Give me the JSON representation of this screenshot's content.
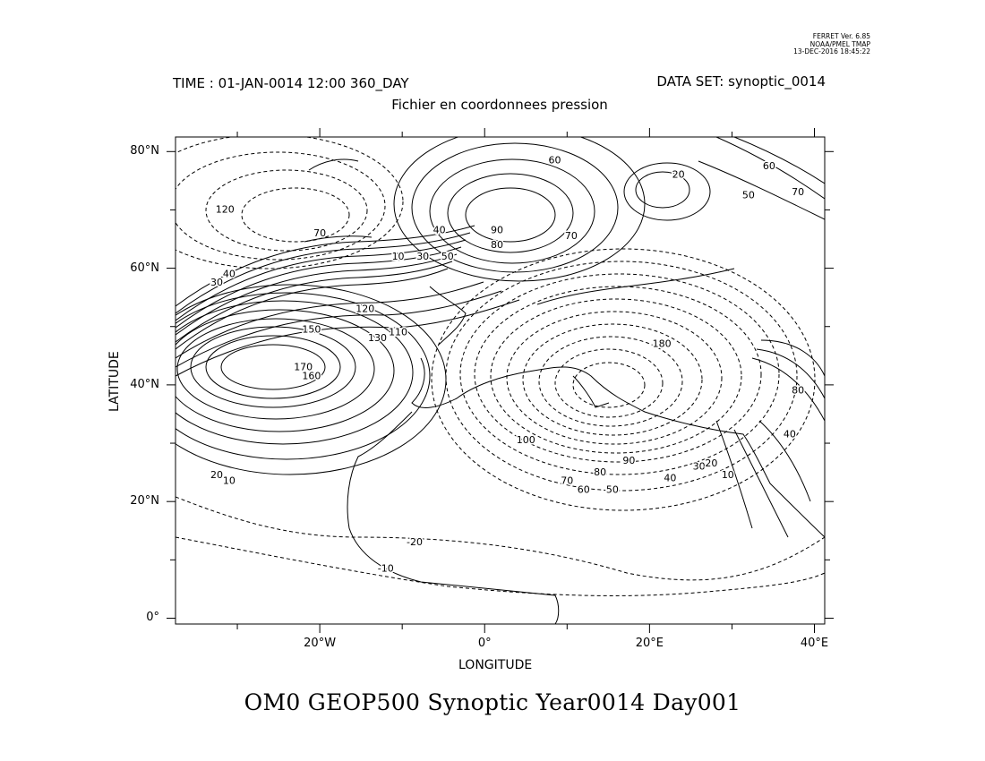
{
  "header": {
    "ferret_line1": "FERRET Ver. 6.85",
    "ferret_line2": "NOAA/PMEL TMAP",
    "ferret_line3": "13-DEC-2016 18:45:22",
    "time_label": "TIME : 01-JAN-0014 12:00 360_DAY",
    "dataset_label": "DATA SET: synoptic_0014",
    "subtitle": "Fichier en coordonnees pression"
  },
  "plot": {
    "xlabel": "LONGITUDE",
    "ylabel": "LATITUDE",
    "xlim": [
      -37.5,
      41.25
    ],
    "ylim": [
      -1,
      82.5
    ],
    "xticks": [
      {
        "value": -20,
        "label": "20°W"
      },
      {
        "value": 0,
        "label": "0°"
      },
      {
        "value": 20,
        "label": "20°E"
      },
      {
        "value": 40,
        "label": "40°E"
      }
    ],
    "yticks": [
      {
        "value": 0,
        "label": "0°"
      },
      {
        "value": 20,
        "label": "20°N"
      },
      {
        "value": 40,
        "label": "40°N"
      },
      {
        "value": 60,
        "label": "60°N"
      },
      {
        "value": 80,
        "label": "80°N"
      }
    ],
    "contour_labels": [
      {
        "text": "120",
        "lon": -31.5,
        "lat": 69.5
      },
      {
        "text": "70",
        "lon": -20,
        "lat": 65.5
      },
      {
        "text": "40",
        "lon": -31,
        "lat": 58.5
      },
      {
        "text": "30",
        "lon": -32.5,
        "lat": 57
      },
      {
        "text": "10",
        "lon": -10.5,
        "lat": 61.5
      },
      {
        "text": "30",
        "lon": -7.5,
        "lat": 61.5
      },
      {
        "text": "40",
        "lon": -5.5,
        "lat": 66
      },
      {
        "text": "50",
        "lon": -4.5,
        "lat": 61.5
      },
      {
        "text": "60",
        "lon": 8.5,
        "lat": 78
      },
      {
        "text": "90",
        "lon": 1.5,
        "lat": 66
      },
      {
        "text": "80",
        "lon": 1.5,
        "lat": 63.5
      },
      {
        "text": "70",
        "lon": 10.5,
        "lat": 65
      },
      {
        "text": "20",
        "lon": 23.5,
        "lat": 75.5
      },
      {
        "text": "50",
        "lon": 32,
        "lat": 72
      },
      {
        "text": "60",
        "lon": 34.5,
        "lat": 77
      },
      {
        "text": "70",
        "lon": 38,
        "lat": 72.5
      },
      {
        "text": "120",
        "lon": -14.5,
        "lat": 52.5
      },
      {
        "text": "150",
        "lon": -21,
        "lat": 49
      },
      {
        "text": "130",
        "lon": -13,
        "lat": 47.5
      },
      {
        "text": "110",
        "lon": -10.5,
        "lat": 48.5
      },
      {
        "text": "170",
        "lon": -22,
        "lat": 42.5
      },
      {
        "text": "160",
        "lon": -21,
        "lat": 41
      },
      {
        "text": "180",
        "lon": 21.5,
        "lat": 46.5
      },
      {
        "text": "100",
        "lon": 5,
        "lat": 30
      },
      {
        "text": "90",
        "lon": 17.5,
        "lat": 26.5
      },
      {
        "text": "80",
        "lon": 14,
        "lat": 24.5
      },
      {
        "text": "70",
        "lon": 10,
        "lat": 23
      },
      {
        "text": "60",
        "lon": 12,
        "lat": 21.5
      },
      {
        "text": "50",
        "lon": 15.5,
        "lat": 21.5
      },
      {
        "text": "40",
        "lon": 22.5,
        "lat": 23.5
      },
      {
        "text": "30",
        "lon": 26,
        "lat": 25.5
      },
      {
        "text": "20",
        "lon": 27.5,
        "lat": 26
      },
      {
        "text": "10",
        "lon": 29.5,
        "lat": 24
      },
      {
        "text": "-20",
        "lon": -8.5,
        "lat": 12.5
      },
      {
        "text": "-10",
        "lon": -12,
        "lat": 8
      },
      {
        "text": "20",
        "lon": -32.5,
        "lat": 24
      },
      {
        "text": "10",
        "lon": -31,
        "lat": 23
      },
      {
        "text": "40",
        "lon": 37,
        "lat": 31
      },
      {
        "text": "80",
        "lon": 38,
        "lat": 38.5
      }
    ]
  },
  "bottom_title": "OM0 GEOP500 Synoptic Year0014 Day001"
}
